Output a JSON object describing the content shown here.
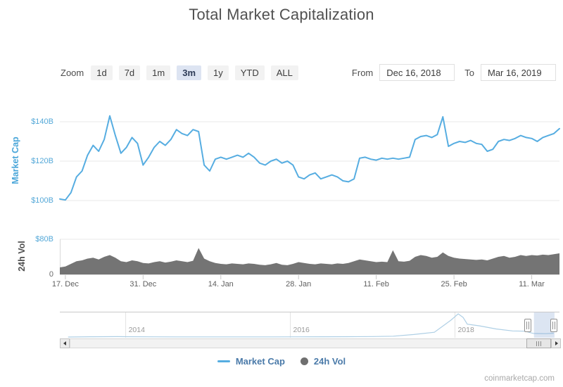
{
  "title": "Total Market Capitalization",
  "toolbar": {
    "zoom_label": "Zoom",
    "zoom_buttons": [
      {
        "label": "1d",
        "selected": false
      },
      {
        "label": "7d",
        "selected": false
      },
      {
        "label": "1m",
        "selected": false
      },
      {
        "label": "3m",
        "selected": true
      },
      {
        "label": "1y",
        "selected": false
      },
      {
        "label": "YTD",
        "selected": false
      },
      {
        "label": "ALL",
        "selected": false
      }
    ],
    "from_label": "From",
    "from_value": "Dec 16, 2018",
    "to_label": "To",
    "to_value": "Mar 16, 2019"
  },
  "legend": {
    "items": [
      {
        "label": "Market Cap",
        "type": "line",
        "color": "#56ade1"
      },
      {
        "label": "24h Vol",
        "type": "circle",
        "color": "#6f6f6f"
      }
    ]
  },
  "watermark": "coinmarketcap.com",
  "colors": {
    "line_blue": "#56ade1",
    "axis_blue": "#54a8d8",
    "volume_gray": "#747474",
    "gridline": "#e8e8e8",
    "x_label": "#5f5f5f",
    "selected_button_bg": "#dde4f2",
    "navigator_mask": "rgba(128,160,210,0.28)"
  },
  "chart_data": {
    "type": "line",
    "title": "Total Market Capitalization",
    "x_start": "Dec 16, 2018",
    "x_end": "Mar 16, 2019",
    "interval": "daily",
    "x_tick_labels": [
      {
        "label": "17. Dec",
        "day": 1
      },
      {
        "label": "31. Dec",
        "day": 15
      },
      {
        "label": "14. Jan",
        "day": 29
      },
      {
        "label": "28. Jan",
        "day": 43
      },
      {
        "label": "11. Feb",
        "day": 57
      },
      {
        "label": "25. Feb",
        "day": 71
      },
      {
        "label": "11. Mar",
        "day": 85
      }
    ],
    "main": {
      "name": "Market Cap",
      "unit": "USD billions",
      "ylim": [
        95,
        150
      ],
      "yticks": [
        {
          "label": "$140B",
          "value": 140
        },
        {
          "label": "$120B",
          "value": 120
        },
        {
          "label": "$100B",
          "value": 100
        }
      ],
      "values": [
        100.8,
        100.3,
        104,
        112,
        115,
        123,
        128,
        125,
        131,
        143,
        133,
        124,
        127,
        132,
        129,
        118,
        122,
        127,
        130,
        128,
        131,
        136,
        134,
        133,
        136,
        135,
        118,
        115,
        121,
        122,
        121,
        122,
        123,
        122,
        124,
        122,
        119,
        118,
        120,
        121,
        119,
        120,
        118,
        112,
        111,
        113,
        114,
        111,
        112,
        113,
        112,
        110,
        109.5,
        111,
        121.5,
        122,
        121,
        120.5,
        121.5,
        121,
        121.5,
        121,
        121.5,
        122,
        131,
        132.5,
        133,
        132,
        133.5,
        142.5,
        127.5,
        129,
        130,
        129.5,
        130.5,
        129,
        128.5,
        125,
        126,
        130,
        131,
        130.5,
        131.5,
        133,
        132,
        131.5,
        130,
        132,
        133,
        134,
        136.5
      ]
    },
    "volume": {
      "name": "24h Vol",
      "unit": "USD billions",
      "ylim": [
        0,
        80
      ],
      "yticks": [
        {
          "label": "$80B",
          "value": 80,
          "color": "#54a8d8"
        },
        {
          "label": "0",
          "value": 0,
          "color": "#6b6b6b"
        }
      ],
      "values": [
        16,
        18,
        24,
        30,
        32,
        36,
        38,
        34,
        40,
        44,
        38,
        30,
        28,
        32,
        30,
        26,
        25,
        28,
        30,
        27,
        29,
        32,
        30,
        28,
        31,
        60,
        36,
        30,
        26,
        24,
        23,
        25,
        24,
        23,
        25,
        24,
        22,
        21,
        23,
        26,
        22,
        21,
        24,
        28,
        26,
        24,
        23,
        25,
        24,
        23,
        25,
        24,
        26,
        30,
        34,
        32,
        30,
        28,
        29,
        28,
        55,
        30,
        29,
        31,
        40,
        44,
        42,
        38,
        40,
        50,
        42,
        38,
        36,
        35,
        34,
        33,
        34,
        32,
        36,
        40,
        42,
        38,
        40,
        44,
        42,
        44,
        43,
        45,
        44,
        46,
        48
      ]
    },
    "navigator": {
      "range_years": [
        2013.2,
        2019.27
      ],
      "year_ticks": [
        2014,
        2016,
        2018
      ],
      "selection_years": [
        2018.96,
        2019.21
      ],
      "series": [
        [
          2013.3,
          1
        ],
        [
          2013.6,
          10
        ],
        [
          2013.9,
          15
        ],
        [
          2014.0,
          12
        ],
        [
          2014.3,
          8
        ],
        [
          2014.6,
          6
        ],
        [
          2014.9,
          5
        ],
        [
          2015.2,
          4
        ],
        [
          2015.5,
          4
        ],
        [
          2015.8,
          5
        ],
        [
          2016.1,
          8
        ],
        [
          2016.4,
          9
        ],
        [
          2016.7,
          12
        ],
        [
          2017.0,
          18
        ],
        [
          2017.25,
          30
        ],
        [
          2017.5,
          90
        ],
        [
          2017.75,
          170
        ],
        [
          2017.95,
          600
        ],
        [
          2018.04,
          830
        ],
        [
          2018.1,
          700
        ],
        [
          2018.15,
          460
        ],
        [
          2018.3,
          400
        ],
        [
          2018.5,
          290
        ],
        [
          2018.7,
          220
        ],
        [
          2018.85,
          210
        ],
        [
          2018.95,
          130
        ],
        [
          2019.0,
          125
        ],
        [
          2019.1,
          120
        ],
        [
          2019.2,
          135
        ]
      ]
    }
  }
}
